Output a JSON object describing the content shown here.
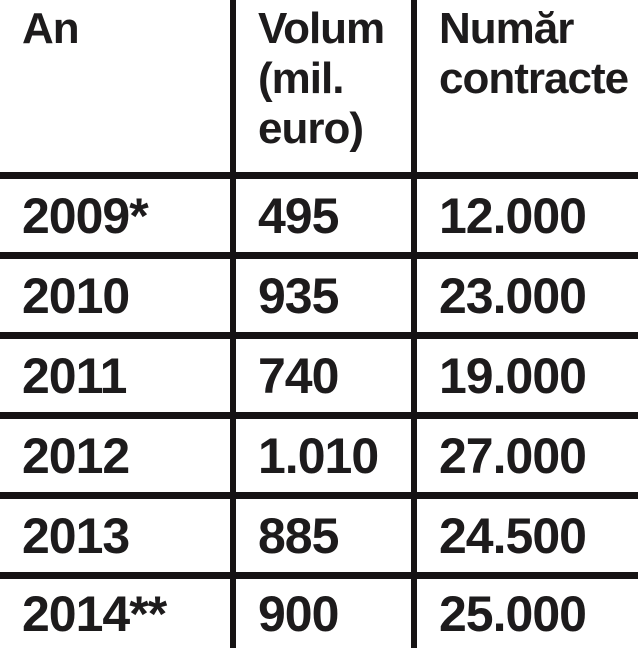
{
  "colors": {
    "background": "#ffffff",
    "text": "#1d1b1c",
    "grid_lines": "#161314"
  },
  "table": {
    "headers": [
      {
        "label": "An",
        "lines": [
          "An"
        ]
      },
      {
        "label": "Volum (mil. euro)",
        "lines": [
          "Volum",
          "(mil.",
          "euro)"
        ]
      },
      {
        "label": "Număr contracte",
        "lines": [
          "Număr",
          "contracte"
        ]
      }
    ],
    "rows": [
      {
        "an": "2009*",
        "volum": "495",
        "contracte": "12.000"
      },
      {
        "an": "2010",
        "volum": "935",
        "contracte": "23.000"
      },
      {
        "an": "2011",
        "volum": "740",
        "contracte": "19.000"
      },
      {
        "an": "2012",
        "volum": "1.010",
        "contracte": "27.000"
      },
      {
        "an": "2013",
        "volum": "885",
        "contracte": "24.500"
      },
      {
        "an": "2014**",
        "volum": "900",
        "contracte": "25.000"
      }
    ]
  },
  "chart_data": {
    "type": "table",
    "title": "",
    "columns": [
      "An",
      "Volum (mil. euro)",
      "Număr contracte"
    ],
    "rows": [
      [
        "2009*",
        "495",
        "12.000"
      ],
      [
        "2010",
        "935",
        "23.000"
      ],
      [
        "2011",
        "740",
        "19.000"
      ],
      [
        "2012",
        "1.010",
        "27.000"
      ],
      [
        "2013",
        "885",
        "24.500"
      ],
      [
        "2014**",
        "900",
        "25.000"
      ]
    ],
    "series": [
      {
        "name": "Volum (mil. euro)",
        "values": [
          495,
          935,
          740,
          1010,
          885,
          900
        ]
      },
      {
        "name": "Număr contracte",
        "values": [
          12000,
          23000,
          19000,
          27000,
          24500,
          25000
        ]
      }
    ],
    "categories": [
      "2009*",
      "2010",
      "2011",
      "2012",
      "2013",
      "2014**"
    ]
  }
}
